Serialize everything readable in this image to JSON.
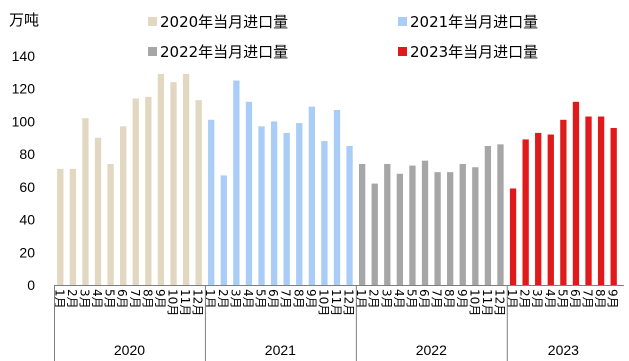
{
  "chart_data": {
    "type": "bar",
    "unit_label": "万吨",
    "ylim": [
      0,
      140
    ],
    "yticks": [
      "0",
      "20",
      "40",
      "60",
      "80",
      "100",
      "120",
      "140"
    ],
    "month_label_suffix": "月",
    "legend": [
      {
        "name": "2020年当月进口量",
        "color": "#e2d7c0"
      },
      {
        "name": "2021年当月进口量",
        "color": "#a9cdf7"
      },
      {
        "name": "2022年当月进口量",
        "color": "#a6a6a6"
      },
      {
        "name": "2023年当月进口量",
        "color": "#e0191b"
      }
    ],
    "series": [
      {
        "name": "2020年当月进口量",
        "year": "2020",
        "color": "#e2d7c0",
        "months": [
          "1",
          "2",
          "3",
          "4",
          "5",
          "6",
          "7",
          "8",
          "9",
          "10",
          "11",
          "12"
        ],
        "values": [
          71,
          71,
          102,
          90,
          74,
          97,
          114,
          115,
          129,
          124,
          129,
          113
        ]
      },
      {
        "name": "2021年当月进口量",
        "year": "2021",
        "color": "#a9cdf7",
        "months": [
          "1",
          "2",
          "3",
          "4",
          "5",
          "6",
          "7",
          "8",
          "9",
          "10",
          "11",
          "12"
        ],
        "values": [
          101,
          67,
          125,
          112,
          97,
          100,
          93,
          99,
          109,
          88,
          107,
          85
        ]
      },
      {
        "name": "2022年当月进口量",
        "year": "2022",
        "color": "#a6a6a6",
        "months": [
          "1",
          "2",
          "3",
          "4",
          "5",
          "6",
          "7",
          "8",
          "9",
          "10",
          "11",
          "12"
        ],
        "values": [
          74,
          62,
          74,
          68,
          73,
          76,
          69,
          69,
          74,
          72,
          85,
          86
        ]
      },
      {
        "name": "2023年当月进口量",
        "year": "2023",
        "color": "#e0191b",
        "months": [
          "1",
          "2",
          "3",
          "4",
          "5",
          "6",
          "7",
          "8",
          "9"
        ],
        "values": [
          59,
          89,
          93,
          92,
          101,
          112,
          103,
          103,
          96
        ]
      }
    ]
  }
}
